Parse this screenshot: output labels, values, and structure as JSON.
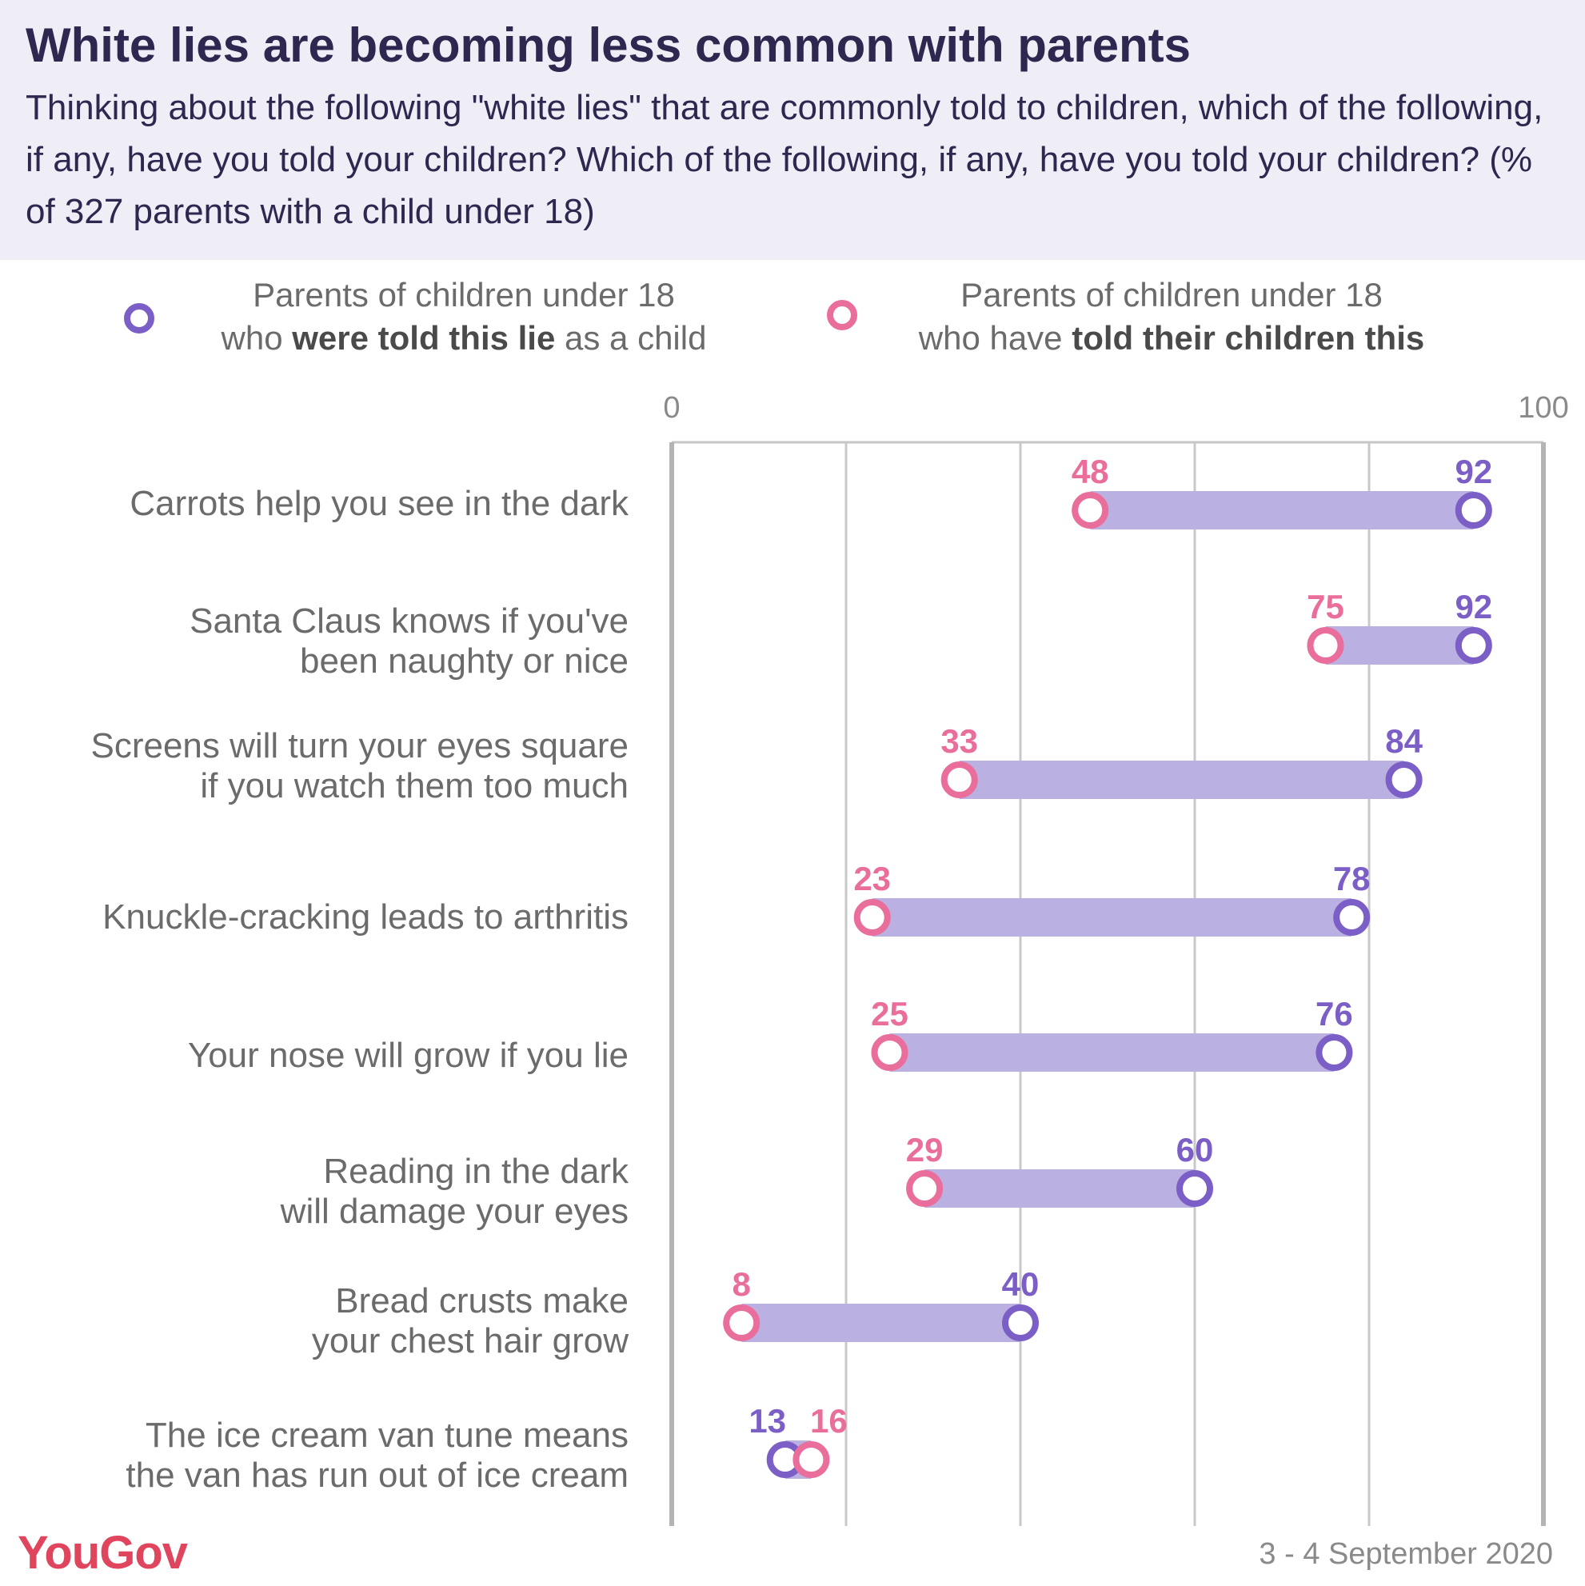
{
  "header": {
    "title": "White lies are becoming less common with parents",
    "subtitle": "Thinking about the following \"white lies\" that are commonly told to children, which of the following, if any, have you told your children? Which of the following, if any, have you told your children? (% of 327 parents with a child under 18)"
  },
  "legend": {
    "told_as_child": {
      "line1": "Parents of children under 18",
      "pre": "who ",
      "bold": "were told this lie",
      "post": " as a child",
      "color": "#7b5fc7"
    },
    "told_children": {
      "line1": "Parents of children under 18",
      "pre": "who have ",
      "bold": "told their children this",
      "post": "",
      "color": "#ea6e9b"
    }
  },
  "chart_data": {
    "type": "dumbbell",
    "xlim": [
      0,
      100
    ],
    "tick_labels": [
      "0",
      "100"
    ],
    "gridlines": [
      0,
      20,
      40,
      60,
      80,
      100
    ],
    "categories": [
      "Carrots help you see in the dark",
      "Santa Claus knows if you've\nbeen naughty or nice",
      "Screens will turn your eyes square\nif you watch them too much",
      "Knuckle-cracking leads to arthritis",
      "Your nose will grow if you lie",
      "Reading in the dark\nwill damage your eyes",
      "Bread crusts make\nyour chest hair grow",
      "The ice cream van tune means\nthe van has run out of ice cream"
    ],
    "series": [
      {
        "name": "Parents of children under 18 who were told this lie as a child",
        "color": "#7b5fc7",
        "values": [
          92,
          92,
          84,
          78,
          76,
          60,
          40,
          13
        ]
      },
      {
        "name": "Parents of children under 18 who have told their children this",
        "color": "#ea6e9b",
        "values": [
          48,
          75,
          33,
          23,
          25,
          29,
          8,
          16
        ]
      }
    ],
    "bar_color": "#bbb0e2"
  },
  "footer": {
    "logo": "YouGov",
    "date": "3 - 4 September 2020"
  }
}
